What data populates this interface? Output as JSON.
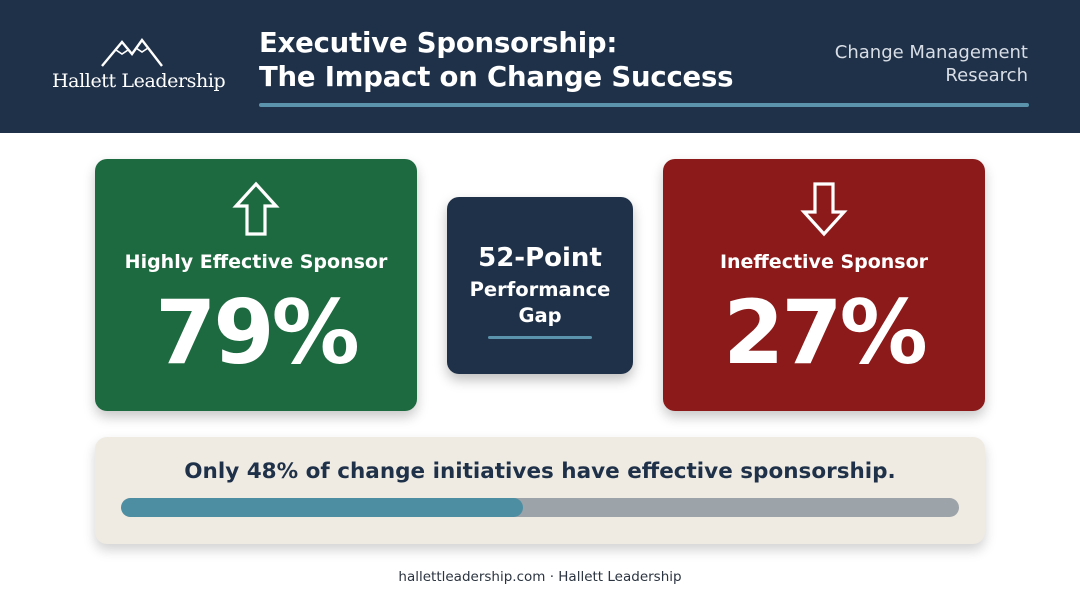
{
  "header": {
    "logo_text": "Hallett Leadership",
    "title_line1": "Executive Sponsorship:",
    "title_line2": "The Impact on Change Success",
    "subtitle_line1": "Change Management",
    "subtitle_line2": "Research"
  },
  "cards": {
    "effective": {
      "icon": "arrow-up-icon",
      "label": "Highly Effective Sponsor",
      "value": "79%",
      "color": "#1e6a40"
    },
    "gap": {
      "headline": "52-Point",
      "line2": "Performance",
      "line3": "Gap",
      "color": "#1f3149"
    },
    "ineffective": {
      "icon": "arrow-down-icon",
      "label": "Ineffective Sponsor",
      "value": "27%",
      "color": "#8c1a1a"
    }
  },
  "stat": {
    "text": "Only 48% of change initiatives have effective sponsorship.",
    "progress": 0.48,
    "fill_color": "#4d8ea3",
    "track_color": "#9ca3a9"
  },
  "footer": {
    "text": "hallettleadership.com · Hallett Leadership"
  }
}
